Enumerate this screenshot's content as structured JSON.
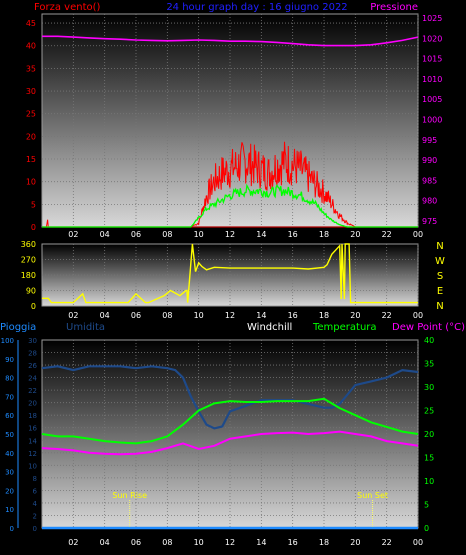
{
  "header": {
    "left_label": "Forza vento()",
    "title": "24 hour graph day : 16 giugno 2022",
    "right_label": "Pressione"
  },
  "colors": {
    "red": "#ff0000",
    "magenta": "#ff00ff",
    "blue": "#2020ff",
    "green": "#00ff00",
    "yellow": "#ffff00",
    "umidita": "#1e4a8a",
    "pioggia": "#1e8bff",
    "white": "#ffffff"
  },
  "wind_direction_labels": [
    "N",
    "W",
    "S",
    "E",
    "N"
  ],
  "bottom_header": {
    "pioggia": "Pioggia",
    "umidita": "Umidita",
    "windchill": "Windchill",
    "temperatura": "Temperatura",
    "dewpoint": "Dew Point (°C)"
  },
  "annotations": {
    "sunrise": "Sun Rise",
    "sunset": "Sun Set",
    "sunrise_hour": 5.6,
    "sunset_hour": 21.1
  },
  "chart_data": [
    {
      "type": "line",
      "title": "24 hour graph day : 16 giugno 2022",
      "x_ticks": [
        "02",
        "04",
        "06",
        "08",
        "10",
        "12",
        "14",
        "16",
        "18",
        "20",
        "22",
        "00"
      ],
      "x_range": [
        0,
        24
      ],
      "y_left": {
        "label": "Forza vento()",
        "ticks": [
          "0",
          "5",
          "10",
          "15",
          "20",
          "25",
          "30",
          "35",
          "40",
          "45"
        ],
        "range": [
          0,
          47
        ]
      },
      "y_right": {
        "label": "Pressione",
        "ticks": [
          "975",
          "980",
          "985",
          "990",
          "995",
          "1000",
          "1005",
          "1010",
          "1015",
          "1020",
          "1025"
        ],
        "range": [
          973.5,
          1026
        ]
      },
      "series": [
        {
          "name": "Pressione",
          "axis": "right",
          "x": [
            0,
            1,
            2,
            3,
            4,
            5,
            6,
            7,
            8,
            9,
            10,
            11,
            12,
            13,
            14,
            15,
            16,
            17,
            18,
            19,
            20,
            21,
            22,
            23,
            24
          ],
          "y": [
            1020.5,
            1020.5,
            1020.3,
            1020.1,
            1019.9,
            1019.8,
            1019.6,
            1019.5,
            1019.4,
            1019.5,
            1019.6,
            1019.5,
            1019.3,
            1019.3,
            1019.2,
            1019.0,
            1018.7,
            1018.4,
            1018.2,
            1018.2,
            1018.2,
            1018.4,
            1018.9,
            1019.5,
            1020.3
          ]
        },
        {
          "name": "Raffica",
          "axis": "left",
          "x": [
            0,
            0.3,
            0.35,
            0.4,
            9,
            9.5,
            10,
            10.5,
            11,
            11.5,
            12,
            12.5,
            13,
            13.5,
            14,
            14.5,
            15,
            15.5,
            16,
            16.5,
            17,
            17.5,
            18,
            18.5,
            19,
            19.5,
            20,
            24
          ],
          "y": [
            0,
            0,
            2,
            0,
            0,
            0,
            1,
            8,
            12,
            14,
            15,
            16,
            17,
            16,
            15,
            14,
            16,
            17,
            16,
            15,
            13,
            11,
            9,
            6,
            3,
            1,
            0,
            0
          ]
        },
        {
          "name": "Vento medio",
          "axis": "left",
          "x": [
            0,
            9,
            9.5,
            10,
            10.5,
            11,
            11.5,
            12,
            12.5,
            13,
            13.5,
            14,
            14.5,
            15,
            15.5,
            16,
            16.5,
            17,
            17.5,
            18,
            18.5,
            19,
            19.5,
            20,
            24
          ],
          "y": [
            0,
            0,
            0,
            2,
            4,
            5,
            6,
            7,
            7.5,
            8,
            8,
            8,
            7.5,
            8,
            8,
            7.5,
            7,
            6,
            5,
            3,
            1.5,
            0.5,
            0,
            0,
            0
          ]
        }
      ]
    },
    {
      "type": "line",
      "x_ticks": [
        "02",
        "04",
        "06",
        "08",
        "10",
        "12",
        "14",
        "16",
        "18",
        "20",
        "22",
        "00"
      ],
      "x_range": [
        0,
        24
      ],
      "y_left": {
        "ticks": [
          "0",
          "90",
          "180",
          "270",
          "360"
        ],
        "range": [
          0,
          360
        ]
      },
      "series": [
        {
          "name": "Direzione vento",
          "x": [
            0,
            0.4,
            0.6,
            1.8,
            2,
            2.6,
            2.8,
            4,
            5.5,
            6,
            6.6,
            6.8,
            7.8,
            8.2,
            8.8,
            9.2,
            9.25,
            9.3,
            9.6,
            9.8,
            10,
            10.2,
            10.5,
            11,
            12,
            13,
            14,
            15,
            16,
            17,
            18,
            18.2,
            18.5,
            18.8,
            19,
            19.1,
            19.15,
            19.3,
            19.35,
            19.6,
            19.7,
            24
          ],
          "y": [
            45,
            45,
            20,
            20,
            20,
            70,
            20,
            20,
            20,
            70,
            20,
            20,
            60,
            90,
            60,
            90,
            90,
            20,
            360,
            200,
            250,
            230,
            210,
            225,
            220,
            220,
            220,
            220,
            220,
            215,
            225,
            240,
            300,
            330,
            350,
            40,
            360,
            40,
            360,
            360,
            20,
            20
          ]
        }
      ]
    },
    {
      "type": "line",
      "x_ticks": [
        "02",
        "04",
        "06",
        "08",
        "10",
        "12",
        "14",
        "16",
        "18",
        "20",
        "22",
        "00"
      ],
      "x_range": [
        0,
        24
      ],
      "y_left_outer": {
        "label": "Pioggia",
        "ticks": [
          "0",
          "10",
          "20",
          "30",
          "40",
          "50",
          "60",
          "70",
          "80",
          "90",
          "100"
        ],
        "range": [
          0,
          100
        ]
      },
      "y_left_inner": {
        "label": "Umidita",
        "ticks": [
          "0",
          "2",
          "4",
          "6",
          "8",
          "10",
          "12",
          "14",
          "16",
          "18",
          "20",
          "22",
          "24",
          "26",
          "28",
          "30"
        ],
        "range": [
          0,
          30
        ]
      },
      "y_right": {
        "label": "Dew Point (°C)",
        "ticks": [
          "0",
          "5",
          "10",
          "15",
          "20",
          "25",
          "30",
          "35",
          "40"
        ],
        "range": [
          0,
          40
        ]
      },
      "series": [
        {
          "name": "Umidita",
          "axis": "percent",
          "x": [
            0,
            1,
            2,
            3,
            4,
            5,
            6,
            7,
            8,
            8.5,
            9,
            9.5,
            10,
            10.5,
            11,
            11.5,
            12,
            13,
            14,
            15,
            16,
            17,
            18,
            18.5,
            19,
            20,
            21,
            22,
            23,
            24
          ],
          "y": [
            85,
            86,
            84,
            86,
            86,
            86,
            85,
            86,
            85,
            84,
            80,
            70,
            62,
            55,
            53,
            54,
            62,
            65,
            68,
            68,
            68,
            66,
            64,
            64,
            66,
            76,
            78,
            80,
            84,
            83
          ]
        },
        {
          "name": "Temperatura",
          "axis": "right",
          "x": [
            0,
            1,
            2,
            3,
            4,
            5,
            6,
            7,
            8,
            9,
            10,
            11,
            12,
            13,
            14,
            15,
            16,
            17,
            18,
            19,
            20,
            21,
            22,
            23,
            24
          ],
          "y": [
            20,
            19.5,
            19.5,
            19,
            18.5,
            18.2,
            18,
            18.5,
            19.5,
            22,
            25,
            26.5,
            27,
            26.8,
            26.8,
            27,
            27,
            27,
            27.5,
            25.5,
            24,
            22.5,
            21.5,
            20.5,
            20
          ]
        },
        {
          "name": "Dew Point",
          "axis": "right",
          "x": [
            0,
            1,
            2,
            3,
            4,
            5,
            6,
            7,
            8,
            9,
            10,
            11,
            12,
            13,
            14,
            15,
            16,
            17,
            18,
            19,
            20,
            21,
            22,
            23,
            24
          ],
          "y": [
            17,
            16.8,
            16.5,
            16,
            15.8,
            15.7,
            15.8,
            16.2,
            17,
            18,
            16.8,
            17.5,
            19,
            19.5,
            20,
            20.2,
            20.3,
            20,
            20.2,
            20.5,
            20,
            19.5,
            18.5,
            18,
            17.5
          ]
        },
        {
          "name": "Pioggia",
          "axis": "percent",
          "x": [
            0,
            24
          ],
          "y": [
            0,
            0
          ]
        }
      ]
    }
  ]
}
